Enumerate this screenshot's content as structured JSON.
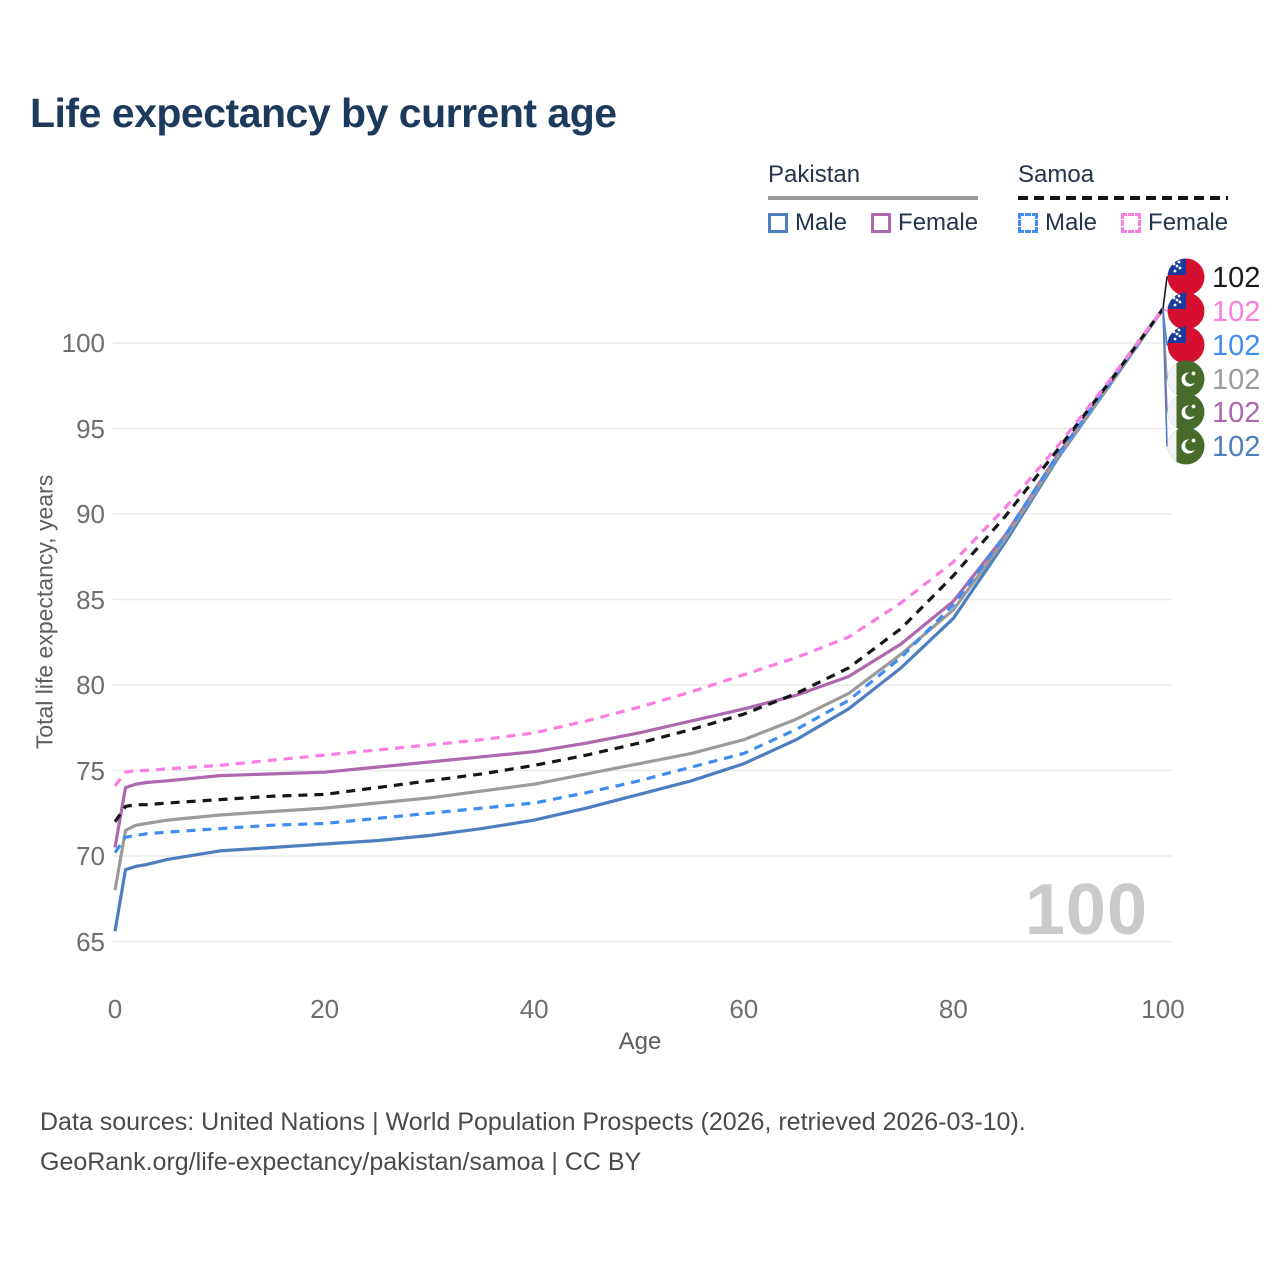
{
  "header": {
    "title": "Life expectancy by current age"
  },
  "legend": {
    "groups": [
      {
        "label": "Pakistan",
        "underline": "solid",
        "underline_color": "#9b9b9b",
        "items": [
          {
            "label": "Male",
            "color": "#4d7ebf",
            "dash": false
          },
          {
            "label": "Female",
            "color": "#ae68ae",
            "dash": false
          }
        ]
      },
      {
        "label": "Samoa",
        "underline": "dashed",
        "underline_color": "#161616",
        "items": [
          {
            "label": "Male",
            "color": "#3f8df2",
            "dash": true
          },
          {
            "label": "Female",
            "color": "#fb7de2",
            "dash": true
          }
        ]
      }
    ]
  },
  "chart_data": {
    "type": "line",
    "title": "Life expectancy by current age",
    "xlabel": "Age",
    "ylabel": "Total life expectancy, years",
    "x_ticks": [
      0,
      20,
      40,
      60,
      80,
      100
    ],
    "y_ticks": [
      65,
      70,
      75,
      80,
      85,
      90,
      95,
      100
    ],
    "xlim": [
      0,
      100
    ],
    "ylim": [
      63.5,
      104
    ],
    "grid": "horizontal-only",
    "legend_position": "top-right",
    "watermark": "100",
    "x": [
      0,
      1,
      2,
      3,
      5,
      10,
      15,
      20,
      25,
      30,
      35,
      40,
      45,
      50,
      55,
      60,
      65,
      70,
      75,
      80,
      85,
      90,
      95,
      100
    ],
    "series": [
      {
        "name": "Pakistan Male",
        "country": "Pakistan",
        "sex": "male",
        "color": "#4d7ebf",
        "dash": false,
        "values": [
          65.6,
          69.2,
          69.4,
          69.5,
          69.8,
          70.3,
          70.5,
          70.7,
          70.9,
          71.2,
          71.6,
          72.1,
          72.8,
          73.6,
          74.4,
          75.4,
          76.8,
          78.6,
          81.0,
          83.9,
          88.4,
          93.3,
          97.6,
          102
        ]
      },
      {
        "name": "Pakistan Female",
        "country": "Pakistan",
        "sex": "female",
        "color": "#ae68ae",
        "dash": false,
        "values": [
          70.5,
          74.0,
          74.2,
          74.3,
          74.4,
          74.7,
          74.8,
          74.9,
          75.2,
          75.5,
          75.8,
          76.1,
          76.6,
          77.2,
          77.9,
          78.6,
          79.4,
          80.5,
          82.4,
          84.9,
          88.8,
          93.5,
          97.6,
          102
        ]
      },
      {
        "name": "Pakistan Combined",
        "country": "Pakistan",
        "sex": "all",
        "color": "#9b9b9b",
        "dash": false,
        "values": [
          68.0,
          71.5,
          71.8,
          71.9,
          72.1,
          72.4,
          72.6,
          72.8,
          73.1,
          73.4,
          73.8,
          74.2,
          74.8,
          75.4,
          76.0,
          76.8,
          78.0,
          79.5,
          81.8,
          84.4,
          88.6,
          93.4,
          97.6,
          102
        ]
      },
      {
        "name": "Samoa Male",
        "country": "Samoa",
        "sex": "male",
        "color": "#3f8df2",
        "dash": true,
        "values": [
          70.2,
          71.1,
          71.2,
          71.3,
          71.4,
          71.6,
          71.8,
          71.9,
          72.2,
          72.5,
          72.8,
          73.1,
          73.7,
          74.4,
          75.2,
          76.0,
          77.4,
          79.1,
          81.6,
          84.7,
          88.8,
          93.5,
          97.7,
          102
        ]
      },
      {
        "name": "Samoa Combined",
        "country": "Samoa",
        "sex": "all",
        "color": "#161616",
        "dash": true,
        "values": [
          72.0,
          72.9,
          73.0,
          73.0,
          73.1,
          73.3,
          73.5,
          73.6,
          74.0,
          74.4,
          74.8,
          75.3,
          75.9,
          76.6,
          77.4,
          78.3,
          79.5,
          81.0,
          83.3,
          86.4,
          89.9,
          93.8,
          97.8,
          102
        ]
      },
      {
        "name": "Samoa Female",
        "country": "Samoa",
        "sex": "female",
        "color": "#fb7de2",
        "dash": true,
        "values": [
          74.1,
          74.9,
          75.0,
          75.0,
          75.1,
          75.3,
          75.6,
          75.9,
          76.2,
          76.5,
          76.8,
          77.2,
          77.9,
          78.7,
          79.6,
          80.6,
          81.6,
          82.8,
          84.8,
          87.2,
          90.4,
          94.0,
          97.9,
          102
        ]
      }
    ],
    "end_labels": [
      {
        "flag": "samoa",
        "series": "Samoa Combined",
        "value": "102",
        "color": "#1a1a1a"
      },
      {
        "flag": "samoa",
        "series": "Samoa Female",
        "value": "102",
        "color": "#fb7de2"
      },
      {
        "flag": "samoa",
        "series": "Samoa Male",
        "value": "102",
        "color": "#3f8df2"
      },
      {
        "flag": "pakistan",
        "series": "Pakistan Combined",
        "value": "102",
        "color": "#9b9b9b"
      },
      {
        "flag": "pakistan",
        "series": "Pakistan Female",
        "value": "102",
        "color": "#ae68ae"
      },
      {
        "flag": "pakistan",
        "series": "Pakistan Male",
        "value": "102",
        "color": "#4d7ebf"
      }
    ]
  },
  "footer": {
    "line1": "Data sources: United Nations | World Population Prospects (2026, retrieved 2026-03-10).",
    "line2": "GeoRank.org/life-expectancy/pakistan/samoa | CC BY"
  }
}
